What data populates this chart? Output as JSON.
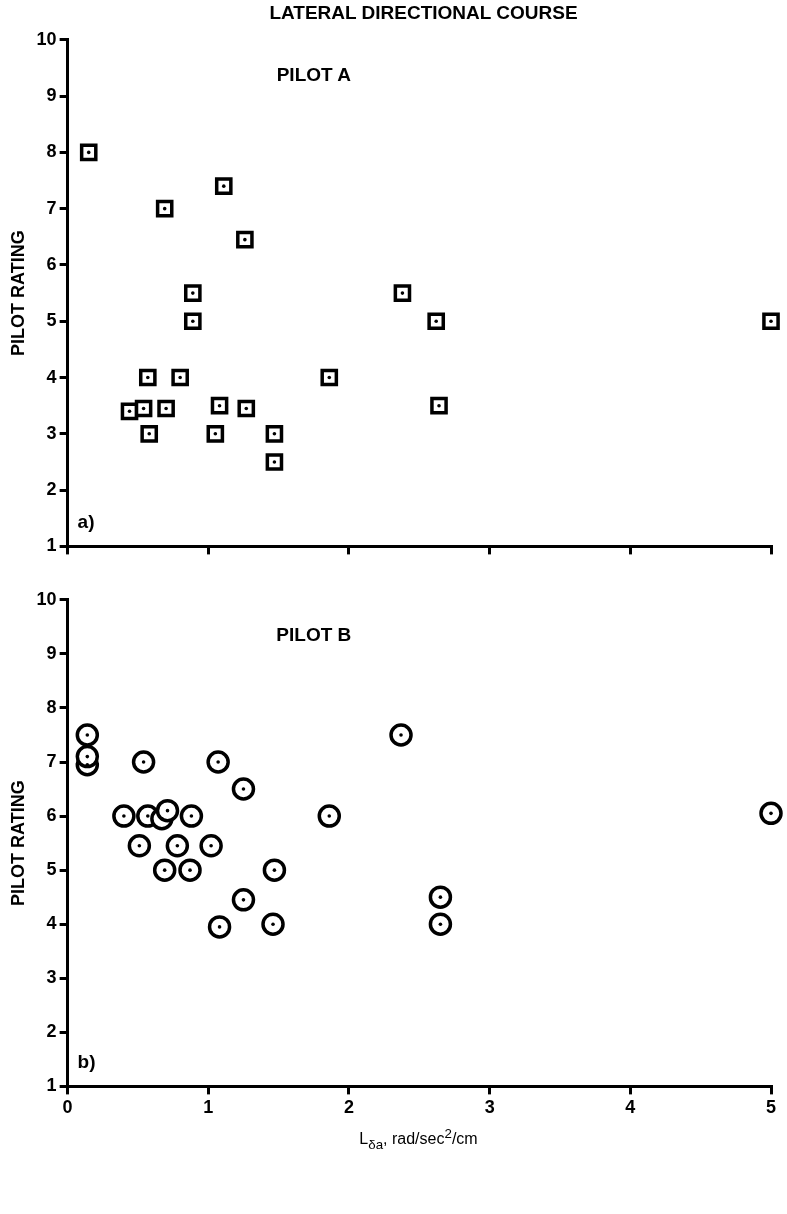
{
  "chart_data": [
    {
      "type": "scatter",
      "title": "LATERAL DIRECTIONAL COURSE",
      "subtitle": "PILOT A",
      "ylabel": "PILOT RATING",
      "annotations": [
        "a)"
      ],
      "marker": "square",
      "grid": false,
      "legend": false,
      "tick_labels": "y",
      "xlim": [
        0,
        5
      ],
      "xticks": [
        0,
        1,
        2,
        3,
        4,
        5
      ],
      "ylim": [
        1,
        10
      ],
      "yticks": [
        1,
        2,
        3,
        4,
        5,
        6,
        7,
        8,
        9,
        10
      ],
      "series": [
        {
          "color": "#000000",
          "x": [
            0.15,
            1.11,
            0.69,
            1.26,
            0.89,
            0.89,
            0.57,
            0.8,
            1.86,
            0.44,
            0.54,
            0.7,
            1.08,
            1.27,
            0.58,
            1.05,
            1.47,
            1.47,
            2.38,
            2.62,
            2.64,
            5.0
          ],
          "values": [
            8.0,
            7.4,
            7.0,
            6.45,
            5.5,
            5.0,
            4.0,
            4.0,
            4.0,
            3.4,
            3.45,
            3.45,
            3.5,
            3.45,
            3.0,
            3.0,
            3.0,
            2.5,
            5.5,
            5.0,
            3.5,
            5.0
          ]
        }
      ]
    },
    {
      "type": "scatter",
      "subtitle": "PILOT B",
      "ylabel": "PILOT RATING",
      "xlabel": "L$_{δa}$, rad/sec$^{2}$/cm",
      "annotations": [
        "b)"
      ],
      "marker": "circle",
      "grid": false,
      "legend": false,
      "xlim": [
        0,
        5
      ],
      "xticks": [
        0,
        1,
        2,
        3,
        4,
        5
      ],
      "ylim": [
        1,
        10
      ],
      "yticks": [
        1,
        2,
        3,
        4,
        5,
        6,
        7,
        8,
        9,
        10
      ],
      "series": [
        {
          "color": "#000000",
          "x": [
            0.14,
            0.14,
            0.14,
            0.54,
            1.07,
            1.25,
            0.4,
            0.57,
            0.67,
            0.71,
            0.88,
            1.86,
            0.51,
            0.78,
            1.02,
            0.69,
            0.87,
            1.47,
            1.25,
            1.08,
            1.46,
            2.37,
            2.65,
            2.65,
            5.0
          ],
          "values": [
            7.5,
            6.95,
            7.1,
            7.0,
            7.0,
            6.5,
            6.0,
            6.0,
            5.95,
            6.1,
            6.0,
            6.0,
            5.45,
            5.45,
            5.45,
            5.0,
            5.0,
            5.0,
            4.45,
            3.95,
            4.0,
            7.5,
            4.5,
            4.0,
            6.05
          ]
        }
      ]
    }
  ]
}
